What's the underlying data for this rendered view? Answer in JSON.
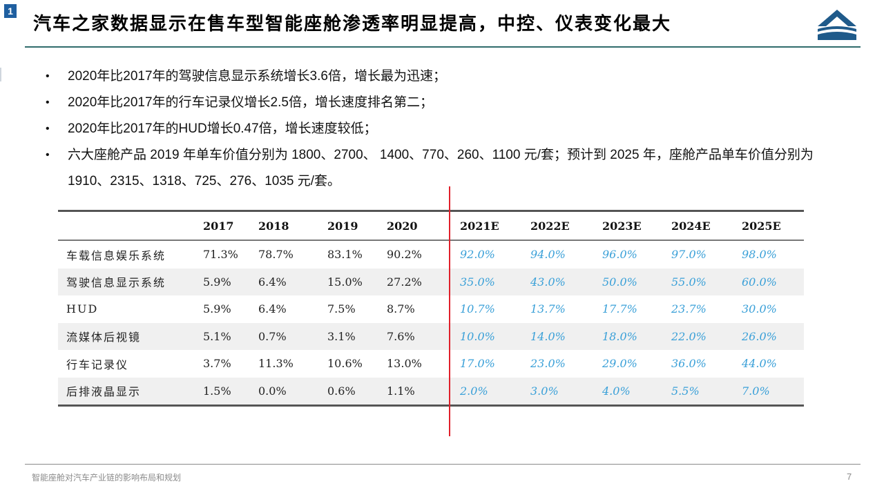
{
  "slide_badge": "1",
  "title": "汽车之家数据显示在售车型智能座舱渗透率明显提高，中控、仪表变化最大",
  "bullets": [
    "2020年比2017年的驾驶信息显示系统增长3.6倍，增长最为迅速；",
    "2020年比2017年的行车记录仪增长2.5倍，增长速度排名第二；",
    "2020年比2017年的HUD增长0.47倍，增长速度较低；",
    "六大座舱产品 2019 年单车价值分别为 1800、2700、 1400、770、260、1100 元/套；预计到 2025 年，座舱产品单车价值分别为 1910、2315、1318、725、276、1035 元/套。"
  ],
  "table": {
    "headers": [
      "",
      "2017",
      "2018",
      "2019",
      "2020",
      "2021E",
      "2022E",
      "2023E",
      "2024E",
      "2025E"
    ],
    "rows": [
      {
        "label": "车载信息娱乐系统",
        "values": [
          "71.3%",
          "78.7%",
          "83.1%",
          "90.2%",
          "92.0%",
          "94.0%",
          "96.0%",
          "97.0%",
          "98.0%"
        ]
      },
      {
        "label": "驾驶信息显示系统",
        "values": [
          "5.9%",
          "6.4%",
          "15.0%",
          "27.2%",
          "35.0%",
          "43.0%",
          "50.0%",
          "55.0%",
          "60.0%"
        ]
      },
      {
        "label": "HUD",
        "values": [
          "5.9%",
          "6.4%",
          "7.5%",
          "8.7%",
          "10.7%",
          "13.7%",
          "17.7%",
          "23.7%",
          "30.0%"
        ]
      },
      {
        "label": "流媒体后视镜",
        "values": [
          "5.1%",
          "0.7%",
          "3.1%",
          "7.6%",
          "10.0%",
          "14.0%",
          "18.0%",
          "22.0%",
          "26.0%"
        ]
      },
      {
        "label": "行车记录仪",
        "values": [
          "3.7%",
          "11.3%",
          "10.6%",
          "13.0%",
          "17.0%",
          "23.0%",
          "29.0%",
          "36.0%",
          "44.0%"
        ]
      },
      {
        "label": "后排液晶显示",
        "values": [
          "1.5%",
          "0.0%",
          "0.6%",
          "1.1%",
          "2.0%",
          "3.0%",
          "4.0%",
          "5.5%",
          "7.0%"
        ]
      }
    ]
  },
  "colors": {
    "accent": "#1f5fa0",
    "estimate_text": "#3aa0d8",
    "divider": "#e0202a",
    "header_rule": "#2f6b6b"
  },
  "footer": {
    "text": "智能座舱对汽车产业链的影响布局和规划",
    "page": "7"
  }
}
